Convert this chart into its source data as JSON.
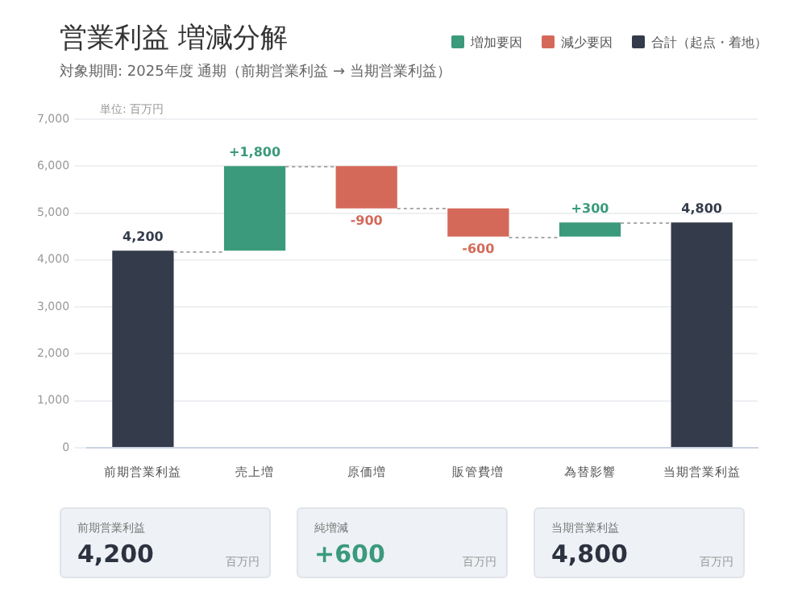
{
  "chart_data": {
    "type": "bar",
    "title": "営業利益 増減分解",
    "subtitle": "対象期間: 2025年度 通期（前期営業利益 → 当期営業利益）",
    "categories": [
      "前期営業利益",
      "売上増",
      "原価増",
      "販管費増",
      "為替影響",
      "当期営業利益"
    ],
    "series": [
      {
        "name": "増加要因",
        "color": "#3a9a7b",
        "base": [
          null,
          4200,
          null,
          null,
          4500,
          null
        ],
        "values": [
          null,
          1800,
          null,
          null,
          300,
          null
        ],
        "value_labels": [
          null,
          "+1,800",
          null,
          null,
          "+300",
          null
        ]
      },
      {
        "name": "減少要因",
        "color": "#d4695a",
        "base": [
          null,
          null,
          6000,
          5100,
          null,
          null
        ],
        "values": [
          null,
          null,
          -900,
          -600,
          null,
          null
        ],
        "value_labels": [
          null,
          null,
          "-900",
          "-600",
          null,
          null
        ]
      },
      {
        "name": "合計（起点・着地）",
        "color": "#343b4a",
        "base": [
          0,
          null,
          null,
          null,
          null,
          0
        ],
        "values": [
          4200,
          null,
          null,
          null,
          null,
          4800
        ],
        "value_labels": [
          "4,200",
          null,
          null,
          null,
          null,
          "4,800"
        ]
      }
    ],
    "ylim": [
      0,
      7000
    ],
    "yticks": [
      0,
      {
        "value": 1000,
        "label": "1,000"
      },
      {
        "value": 2000,
        "label": "2,000"
      },
      {
        "value": 3000,
        "label": "3,000"
      },
      {
        "value": 4000,
        "label": "4,000"
      },
      {
        "value": 5000,
        "label": "5,000"
      },
      {
        "value": 6000,
        "label": "6,000"
      },
      {
        "value": 7000,
        "label": "7,000"
      }
    ],
    "grid": "y",
    "legend": "top right",
    "annotations": [
      "単位: 百万円",
      "前期営業利益",
      "4,200",
      "百万円",
      "純増減",
      "+600",
      "百万円",
      "当期営業利益",
      "4,800",
      "百万円"
    ]
  }
}
